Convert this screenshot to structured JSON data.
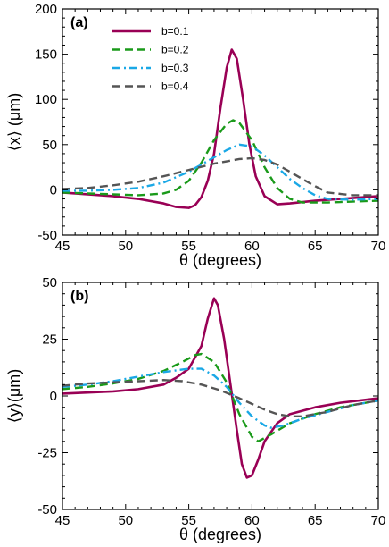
{
  "chart_data": [
    {
      "type": "line",
      "panel_label": "(a)",
      "xlabel": "θ (degrees)",
      "ylabel": "⟨x⟩ (μm)",
      "xlim": [
        45,
        70
      ],
      "ylim": [
        -50,
        200
      ],
      "x_ticks": [
        45,
        50,
        55,
        60,
        65,
        70
      ],
      "y_ticks": [
        -50,
        0,
        50,
        100,
        150,
        200
      ],
      "x_tick_labels": [
        "45",
        "50",
        "55",
        "60",
        "65",
        "70"
      ],
      "y_tick_labels": [
        "-50",
        "0",
        "50",
        "100",
        "150",
        "200"
      ],
      "legend_position": "top-left",
      "grid": false,
      "series": [
        {
          "name": "b=0.1",
          "color": "#990055",
          "dash": "solid",
          "points": [
            [
              45,
              -3
            ],
            [
              47,
              -5
            ],
            [
              49,
              -7
            ],
            [
              51,
              -10
            ],
            [
              53,
              -15
            ],
            [
              54,
              -19
            ],
            [
              55,
              -20
            ],
            [
              55.5,
              -17
            ],
            [
              56,
              -8
            ],
            [
              56.5,
              10
            ],
            [
              57,
              40
            ],
            [
              57.5,
              90
            ],
            [
              58,
              135
            ],
            [
              58.4,
              155
            ],
            [
              58.8,
              145
            ],
            [
              59.3,
              100
            ],
            [
              59.8,
              50
            ],
            [
              60.3,
              15
            ],
            [
              61,
              -7
            ],
            [
              62,
              -16
            ],
            [
              63,
              -15
            ],
            [
              65,
              -12
            ],
            [
              67,
              -10
            ],
            [
              70,
              -7
            ]
          ]
        },
        {
          "name": "b=0.2",
          "color": "#1a9a1a",
          "dash": "dashed",
          "points": [
            [
              45,
              -3
            ],
            [
              47,
              -4
            ],
            [
              49,
              -5
            ],
            [
              51,
              -6
            ],
            [
              53,
              -4
            ],
            [
              54,
              0
            ],
            [
              55,
              10
            ],
            [
              56,
              30
            ],
            [
              57,
              55
            ],
            [
              58,
              73
            ],
            [
              58.5,
              77
            ],
            [
              59,
              74
            ],
            [
              60,
              55
            ],
            [
              61,
              25
            ],
            [
              62,
              2
            ],
            [
              63,
              -10
            ],
            [
              64,
              -14
            ],
            [
              66,
              -14
            ],
            [
              70,
              -12
            ]
          ]
        },
        {
          "name": "b=0.3",
          "color": "#1aa8e6",
          "dash": "dashdot",
          "points": [
            [
              45,
              -1
            ],
            [
              47,
              -1
            ],
            [
              49,
              0
            ],
            [
              51,
              2
            ],
            [
              53,
              8
            ],
            [
              55,
              20
            ],
            [
              56.5,
              32
            ],
            [
              58,
              44
            ],
            [
              59,
              50
            ],
            [
              60,
              48
            ],
            [
              61,
              38
            ],
            [
              62,
              25
            ],
            [
              63,
              12
            ],
            [
              64,
              2
            ],
            [
              65,
              -6
            ],
            [
              66,
              -10
            ],
            [
              68,
              -11
            ],
            [
              70,
              -10
            ]
          ]
        },
        {
          "name": "b=0.4",
          "color": "#555555",
          "dash": "dashed",
          "points": [
            [
              45,
              1
            ],
            [
              47,
              2
            ],
            [
              49,
              5
            ],
            [
              51,
              9
            ],
            [
              53,
              15
            ],
            [
              55,
              22
            ],
            [
              57,
              29
            ],
            [
              59,
              34
            ],
            [
              60,
              35
            ],
            [
              61,
              33
            ],
            [
              62,
              28
            ],
            [
              63,
              20
            ],
            [
              64,
              12
            ],
            [
              65,
              4
            ],
            [
              66,
              -3
            ],
            [
              68,
              -6
            ],
            [
              70,
              -6
            ]
          ]
        }
      ]
    },
    {
      "type": "line",
      "panel_label": "(b)",
      "xlabel": "θ (degrees)",
      "ylabel": "⟨y⟩(μm)",
      "xlim": [
        45,
        70
      ],
      "ylim": [
        -50,
        50
      ],
      "x_ticks": [
        45,
        50,
        55,
        60,
        65,
        70
      ],
      "y_ticks": [
        -50,
        -25,
        0,
        25,
        50
      ],
      "x_tick_labels": [
        "45",
        "50",
        "55",
        "60",
        "65",
        "70"
      ],
      "y_tick_labels": [
        "-50",
        "-25",
        "0",
        "25",
        "50"
      ],
      "grid": false,
      "series": [
        {
          "name": "b=0.1",
          "color": "#990055",
          "dash": "solid",
          "points": [
            [
              45,
              1
            ],
            [
              47,
              1.5
            ],
            [
              49,
              2
            ],
            [
              51,
              3
            ],
            [
              53,
              5
            ],
            [
              54,
              8
            ],
            [
              55,
              12
            ],
            [
              56,
              22
            ],
            [
              56.5,
              34
            ],
            [
              57,
              43
            ],
            [
              57.3,
              40
            ],
            [
              57.8,
              25
            ],
            [
              58.3,
              5
            ],
            [
              58.8,
              -15
            ],
            [
              59.2,
              -30
            ],
            [
              59.6,
              -36
            ],
            [
              60,
              -35
            ],
            [
              60.5,
              -28
            ],
            [
              61,
              -20
            ],
            [
              62,
              -12
            ],
            [
              63,
              -8
            ],
            [
              65,
              -5
            ],
            [
              67,
              -3
            ],
            [
              70,
              -1
            ]
          ]
        },
        {
          "name": "b=0.2",
          "color": "#1a9a1a",
          "dash": "dashed",
          "points": [
            [
              45,
              3
            ],
            [
              47,
              4
            ],
            [
              49,
              5.5
            ],
            [
              51,
              7.5
            ],
            [
              53,
              11
            ],
            [
              54.5,
              15
            ],
            [
              55.5,
              18
            ],
            [
              56,
              18.5
            ],
            [
              57,
              15
            ],
            [
              58,
              6
            ],
            [
              59,
              -8
            ],
            [
              60,
              -18
            ],
            [
              60.5,
              -20
            ],
            [
              61.5,
              -17
            ],
            [
              63,
              -12
            ],
            [
              65,
              -8
            ],
            [
              67,
              -5
            ],
            [
              70,
              -2
            ]
          ]
        },
        {
          "name": "b=0.3",
          "color": "#1aa8e6",
          "dash": "dashdot",
          "points": [
            [
              45,
              4
            ],
            [
              47,
              5
            ],
            [
              49,
              6.5
            ],
            [
              51,
              8.5
            ],
            [
              53,
              10.5
            ],
            [
              55,
              12
            ],
            [
              56,
              12
            ],
            [
              57,
              9
            ],
            [
              58,
              4
            ],
            [
              59,
              -3
            ],
            [
              60,
              -9
            ],
            [
              61,
              -13
            ],
            [
              61.5,
              -14
            ],
            [
              62.5,
              -13
            ],
            [
              64,
              -10
            ],
            [
              66,
              -7
            ],
            [
              68,
              -4
            ],
            [
              70,
              -2
            ]
          ]
        },
        {
          "name": "b=0.4",
          "color": "#555555",
          "dash": "dashed",
          "points": [
            [
              45,
              4.5
            ],
            [
              47,
              5.5
            ],
            [
              49,
              6
            ],
            [
              51,
              6.5
            ],
            [
              53,
              7
            ],
            [
              54.5,
              6.5
            ],
            [
              56,
              5
            ],
            [
              57.5,
              2.5
            ],
            [
              59,
              -1
            ],
            [
              60,
              -3.5
            ],
            [
              61,
              -6
            ],
            [
              62,
              -8
            ],
            [
              63,
              -9
            ],
            [
              64,
              -9
            ],
            [
              66,
              -7
            ],
            [
              68,
              -4
            ],
            [
              70,
              -2
            ]
          ]
        }
      ]
    }
  ]
}
